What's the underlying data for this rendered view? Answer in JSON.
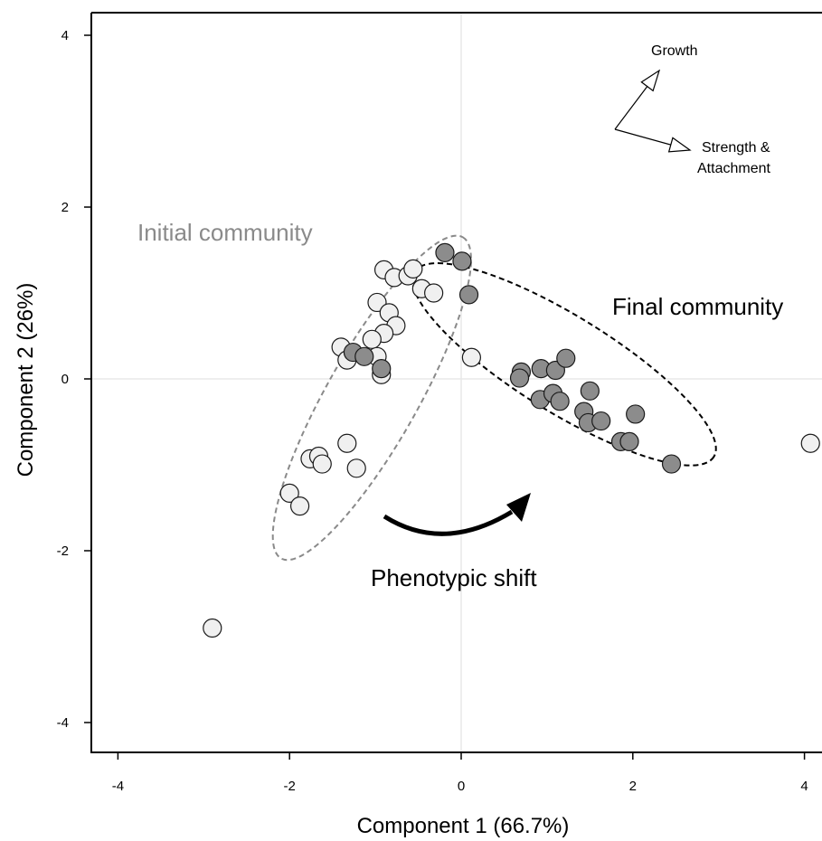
{
  "chart_data": {
    "type": "scatter",
    "xlabel": "Component 1 (66.7%)",
    "ylabel": "Component 2 (26%)",
    "xlim": [
      -4.3,
      4.2
    ],
    "ylim": [
      -4.4,
      4.3
    ],
    "xticks": [
      "-4",
      "-2",
      "0",
      "2",
      "4"
    ],
    "yticks": [
      "-4",
      "-2",
      "0",
      "2",
      "4"
    ],
    "xtick_values": [
      -4,
      -2,
      0,
      2,
      4
    ],
    "ytick_values": [
      -4,
      -2,
      0,
      2,
      4
    ],
    "zero_lines": true,
    "colors": {
      "initial_fill": "#f0f0f0",
      "final_fill": "#8c8c8c",
      "point_stroke": "#1a1a1a",
      "initial_ellipse": "#8a8a8a",
      "final_ellipse": "#000000",
      "zero_line": "#e8e8e8"
    },
    "series": [
      {
        "group": "initial",
        "points": [
          [
            -0.9,
            1.27
          ],
          [
            -0.78,
            1.18
          ],
          [
            -0.62,
            1.2
          ],
          [
            -0.56,
            1.28
          ],
          [
            -0.46,
            1.05
          ],
          [
            -0.32,
            1.0
          ],
          [
            -0.98,
            0.89
          ],
          [
            -0.84,
            0.77
          ],
          [
            -0.76,
            0.62
          ],
          [
            -0.9,
            0.53
          ],
          [
            -1.04,
            0.46
          ],
          [
            -1.4,
            0.37
          ],
          [
            -1.33,
            0.22
          ],
          [
            -0.98,
            0.26
          ],
          [
            -0.93,
            0.05
          ],
          [
            0.12,
            0.25
          ],
          [
            -1.33,
            -0.75
          ],
          [
            -1.76,
            -0.93
          ],
          [
            -1.66,
            -0.9
          ],
          [
            -1.62,
            -0.99
          ],
          [
            -1.22,
            -1.04
          ],
          [
            -2.0,
            -1.33
          ],
          [
            -1.88,
            -1.48
          ],
          [
            -2.9,
            -2.9
          ],
          [
            4.07,
            -0.75
          ]
        ]
      },
      {
        "group": "final",
        "points": [
          [
            -0.19,
            1.47
          ],
          [
            0.01,
            1.37
          ],
          [
            0.09,
            0.98
          ],
          [
            -1.26,
            0.31
          ],
          [
            -1.13,
            0.26
          ],
          [
            -0.93,
            0.12
          ],
          [
            0.7,
            0.08
          ],
          [
            0.68,
            0.01
          ],
          [
            0.93,
            0.12
          ],
          [
            1.1,
            0.1
          ],
          [
            1.22,
            0.24
          ],
          [
            0.92,
            -0.24
          ],
          [
            1.07,
            -0.17
          ],
          [
            1.15,
            -0.26
          ],
          [
            1.5,
            -0.14
          ],
          [
            1.43,
            -0.38
          ],
          [
            1.48,
            -0.51
          ],
          [
            1.63,
            -0.49
          ],
          [
            2.03,
            -0.41
          ],
          [
            1.86,
            -0.73
          ],
          [
            1.96,
            -0.73
          ],
          [
            2.45,
            -0.99
          ]
        ]
      }
    ],
    "ellipses": [
      {
        "group": "initial",
        "cx": -1.04,
        "cy": -0.22,
        "rx": 2.15,
        "ry": 0.53,
        "angle_deg": 60.5
      },
      {
        "group": "final",
        "cx": 1.2,
        "cy": 0.17,
        "rx": 2.05,
        "ry": 0.56,
        "angle_deg": -31.7
      }
    ],
    "annotations": {
      "initial_label": "Initial community",
      "final_label": "Final community",
      "shift_label": "Phenotypic shift",
      "vector_growth": "Growth",
      "vector_strength_line1": "Strength &",
      "vector_strength_line2": "Attachment"
    }
  }
}
